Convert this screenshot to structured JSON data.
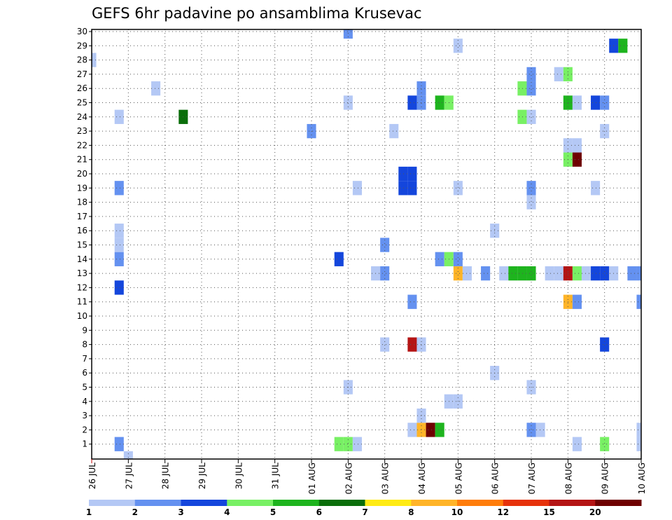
{
  "chart_data": {
    "type": "heatmap",
    "title": "GEFS 6hr padavine po ansamblima Krusevac",
    "xlabel": "",
    "ylabel": "",
    "x_tick_labels": [
      "26 JUL",
      "27 JUL",
      "28 JUL",
      "29 JUL",
      "30 JUL",
      "31 JUL",
      "01 AUG",
      "02 AUG",
      "03 AUG",
      "04 AUG",
      "05 AUG",
      "06 AUG",
      "07 AUG",
      "08 AUG",
      "09 AUG",
      "10 AUG"
    ],
    "steps_per_day": 4,
    "x_steps_range": [
      0,
      60
    ],
    "y_labels": [
      1,
      2,
      3,
      4,
      5,
      6,
      7,
      8,
      9,
      10,
      11,
      12,
      13,
      14,
      15,
      16,
      17,
      18,
      19,
      20,
      21,
      22,
      23,
      24,
      25,
      26,
      27,
      28,
      29,
      30
    ],
    "grid": true,
    "colorbar": {
      "levels": [
        1,
        2,
        3,
        4,
        5,
        6,
        7,
        8,
        10,
        12,
        15,
        20
      ],
      "colors": [
        "#b4c8f5",
        "#6491f0",
        "#1446dc",
        "#78f064",
        "#1eb41e",
        "#0a6e0a",
        "#ffeb14",
        "#ffb428",
        "#ff7d0a",
        "#e6320a",
        "#b41414",
        "#6e0000"
      ],
      "label_levels": [
        1,
        2,
        3,
        4,
        5,
        6,
        7,
        8,
        10,
        12,
        15,
        20
      ]
    },
    "cells": [
      {
        "x": 4,
        "y": 0,
        "v": 1
      },
      {
        "x": 3,
        "y": 1,
        "v": 2
      },
      {
        "x": 27,
        "y": 1,
        "v": 4
      },
      {
        "x": 28,
        "y": 1,
        "v": 4
      },
      {
        "x": 29,
        "y": 1,
        "v": 1
      },
      {
        "x": 53,
        "y": 1,
        "v": 1
      },
      {
        "x": 56,
        "y": 1,
        "v": 4
      },
      {
        "x": 60,
        "y": 1,
        "v": 1
      },
      {
        "x": 35,
        "y": 2,
        "v": 1
      },
      {
        "x": 36,
        "y": 2,
        "v": 8
      },
      {
        "x": 37,
        "y": 2,
        "v": 20
      },
      {
        "x": 38,
        "y": 2,
        "v": 5
      },
      {
        "x": 48,
        "y": 2,
        "v": 2
      },
      {
        "x": 49,
        "y": 2,
        "v": 1
      },
      {
        "x": 60,
        "y": 2,
        "v": 1
      },
      {
        "x": 36,
        "y": 3,
        "v": 1
      },
      {
        "x": 39,
        "y": 4,
        "v": 1
      },
      {
        "x": 40,
        "y": 4,
        "v": 1
      },
      {
        "x": 28,
        "y": 5,
        "v": 1
      },
      {
        "x": 48,
        "y": 5,
        "v": 1
      },
      {
        "x": 44,
        "y": 6,
        "v": 1
      },
      {
        "x": 32,
        "y": 8,
        "v": 1
      },
      {
        "x": 35,
        "y": 8,
        "v": 15
      },
      {
        "x": 36,
        "y": 8,
        "v": 1
      },
      {
        "x": 56,
        "y": 8,
        "v": 3
      },
      {
        "x": 35,
        "y": 11,
        "v": 2
      },
      {
        "x": 52,
        "y": 11,
        "v": 8
      },
      {
        "x": 53,
        "y": 11,
        "v": 2
      },
      {
        "x": 60,
        "y": 11,
        "v": 2
      },
      {
        "x": 3,
        "y": 12,
        "v": 3
      },
      {
        "x": 31,
        "y": 13,
        "v": 1
      },
      {
        "x": 32,
        "y": 13,
        "v": 2
      },
      {
        "x": 40,
        "y": 13,
        "v": 8
      },
      {
        "x": 41,
        "y": 13,
        "v": 1
      },
      {
        "x": 43,
        "y": 13,
        "v": 2
      },
      {
        "x": 45,
        "y": 13,
        "v": 1
      },
      {
        "x": 46,
        "y": 13,
        "v": 5
      },
      {
        "x": 47,
        "y": 13,
        "v": 5
      },
      {
        "x": 48,
        "y": 13,
        "v": 5
      },
      {
        "x": 50,
        "y": 13,
        "v": 1
      },
      {
        "x": 51,
        "y": 13,
        "v": 1
      },
      {
        "x": 52,
        "y": 13,
        "v": 15
      },
      {
        "x": 53,
        "y": 13,
        "v": 4
      },
      {
        "x": 54,
        "y": 13,
        "v": 1
      },
      {
        "x": 55,
        "y": 13,
        "v": 3
      },
      {
        "x": 56,
        "y": 13,
        "v": 3
      },
      {
        "x": 57,
        "y": 13,
        "v": 1
      },
      {
        "x": 59,
        "y": 13,
        "v": 2
      },
      {
        "x": 60,
        "y": 13,
        "v": 2
      },
      {
        "x": 3,
        "y": 14,
        "v": 2
      },
      {
        "x": 27,
        "y": 14,
        "v": 3
      },
      {
        "x": 38,
        "y": 14,
        "v": 2
      },
      {
        "x": 39,
        "y": 14,
        "v": 4
      },
      {
        "x": 40,
        "y": 14,
        "v": 2
      },
      {
        "x": 3,
        "y": 15,
        "v": 1
      },
      {
        "x": 32,
        "y": 15,
        "v": 2
      },
      {
        "x": 3,
        "y": 16,
        "v": 1
      },
      {
        "x": 44,
        "y": 16,
        "v": 1
      },
      {
        "x": 48,
        "y": 18,
        "v": 1
      },
      {
        "x": 3,
        "y": 19,
        "v": 2
      },
      {
        "x": 29,
        "y": 19,
        "v": 1
      },
      {
        "x": 34,
        "y": 19,
        "v": 3
      },
      {
        "x": 35,
        "y": 19,
        "v": 3
      },
      {
        "x": 40,
        "y": 19,
        "v": 1
      },
      {
        "x": 48,
        "y": 19,
        "v": 2
      },
      {
        "x": 55,
        "y": 19,
        "v": 1
      },
      {
        "x": 34,
        "y": 20,
        "v": 3
      },
      {
        "x": 35,
        "y": 20,
        "v": 3
      },
      {
        "x": 52,
        "y": 21,
        "v": 4
      },
      {
        "x": 53,
        "y": 21,
        "v": 20
      },
      {
        "x": 52,
        "y": 22,
        "v": 1
      },
      {
        "x": 53,
        "y": 22,
        "v": 1
      },
      {
        "x": 24,
        "y": 23,
        "v": 2
      },
      {
        "x": 33,
        "y": 23,
        "v": 1
      },
      {
        "x": 56,
        "y": 23,
        "v": 1
      },
      {
        "x": 3,
        "y": 24,
        "v": 1
      },
      {
        "x": 10,
        "y": 24,
        "v": 6
      },
      {
        "x": 47,
        "y": 24,
        "v": 4
      },
      {
        "x": 48,
        "y": 24,
        "v": 1
      },
      {
        "x": 28,
        "y": 25,
        "v": 1
      },
      {
        "x": 35,
        "y": 25,
        "v": 3
      },
      {
        "x": 36,
        "y": 25,
        "v": 2
      },
      {
        "x": 38,
        "y": 25,
        "v": 5
      },
      {
        "x": 39,
        "y": 25,
        "v": 4
      },
      {
        "x": 52,
        "y": 25,
        "v": 5
      },
      {
        "x": 53,
        "y": 25,
        "v": 1
      },
      {
        "x": 55,
        "y": 25,
        "v": 3
      },
      {
        "x": 56,
        "y": 25,
        "v": 2
      },
      {
        "x": 36,
        "y": 26,
        "v": 2
      },
      {
        "x": 47,
        "y": 26,
        "v": 4
      },
      {
        "x": 48,
        "y": 26,
        "v": 2
      },
      {
        "x": 7,
        "y": 26,
        "v": 1
      },
      {
        "x": 48,
        "y": 27,
        "v": 2
      },
      {
        "x": 51,
        "y": 27,
        "v": 1
      },
      {
        "x": 52,
        "y": 27,
        "v": 4
      },
      {
        "x": 0,
        "y": 28,
        "v": 1
      },
      {
        "x": 40,
        "y": 29,
        "v": 1
      },
      {
        "x": 57,
        "y": 29,
        "v": 3
      },
      {
        "x": 58,
        "y": 29,
        "v": 5
      },
      {
        "x": 28,
        "y": 30,
        "v": 2
      }
    ]
  }
}
